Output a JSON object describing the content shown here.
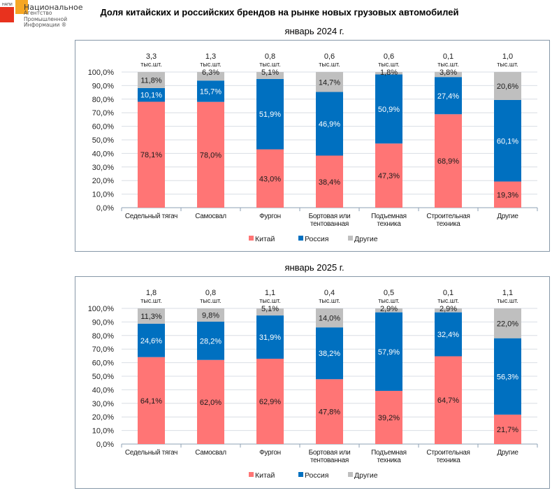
{
  "logo": {
    "abbr": "НАПИ",
    "line1": "Национальное",
    "line2": "Агентство",
    "line3": "Промышленной",
    "line4": "Информации ®"
  },
  "title": "Доля китайских и российских брендов на рынке новых грузовых автомобилей",
  "colors": {
    "china": "#ff7575",
    "russia": "#0070c0",
    "other": "#bfbfbf"
  },
  "chart_data": [
    {
      "type": "bar",
      "stacked": true,
      "title": "январь 2024 г.",
      "categories": [
        "Седельный тягач",
        "Самосвал",
        "Фургон",
        "Бортовая или тентованная",
        "Подъемная техника",
        "Строительная техника",
        "Другие"
      ],
      "category_lines": [
        [
          "Седельный тягач"
        ],
        [
          "Самосвал"
        ],
        [
          "Фургон"
        ],
        [
          "Бортовая или",
          "тентованная"
        ],
        [
          "Подъемная",
          "техника"
        ],
        [
          "Строительная",
          "техника"
        ],
        [
          "Другие"
        ]
      ],
      "totals": [
        "3,3",
        "1,3",
        "0,8",
        "0,6",
        "0,6",
        "0,1",
        "1,0"
      ],
      "totals_unit": "тыс.шт.",
      "series": [
        {
          "name": "Китай",
          "key": "china",
          "values": [
            78.1,
            78.0,
            43.0,
            38.4,
            47.3,
            68.9,
            19.3
          ],
          "labels": [
            "78,1%",
            "78,0%",
            "43,0%",
            "38,4%",
            "47,3%",
            "68,9%",
            "19,3%"
          ]
        },
        {
          "name": "Россия",
          "key": "russia",
          "values": [
            10.1,
            15.7,
            51.9,
            46.9,
            50.9,
            27.4,
            60.1
          ],
          "labels": [
            "10,1%",
            "15,7%",
            "51,9%",
            "46,9%",
            "50,9%",
            "27,4%",
            "60,1%"
          ]
        },
        {
          "name": "Другие",
          "key": "other",
          "values": [
            11.8,
            6.3,
            5.1,
            14.7,
            1.8,
            3.8,
            20.6
          ],
          "labels": [
            "11,8%",
            "6,3%",
            "5,1%",
            "14,7%",
            "1,8%",
            "3,8%",
            "20,6%"
          ]
        }
      ],
      "yticks": [
        "0,0%",
        "10,0%",
        "20,0%",
        "30,0%",
        "40,0%",
        "50,0%",
        "60,0%",
        "70,0%",
        "80,0%",
        "90,0%",
        "100,0%"
      ],
      "ylim": [
        0,
        100
      ],
      "grid": true,
      "legend": "bottom"
    },
    {
      "type": "bar",
      "stacked": true,
      "title": "январь 2025 г.",
      "categories": [
        "Седельный тягач",
        "Самосвал",
        "Фургон",
        "Бортовая или тентованная",
        "Подъемная техника",
        "Строительная техника",
        "Другие"
      ],
      "category_lines": [
        [
          "Седельный тягач"
        ],
        [
          "Самосвал"
        ],
        [
          "Фургон"
        ],
        [
          "Бортовая или",
          "тентованная"
        ],
        [
          "Подъемная",
          "техника"
        ],
        [
          "Строительная",
          "техника"
        ],
        [
          "Другие"
        ]
      ],
      "totals": [
        "1,8",
        "0,8",
        "1,1",
        "0,4",
        "0,5",
        "0,1",
        "1,1"
      ],
      "totals_unit": "тыс.шт.",
      "series": [
        {
          "name": "Китай",
          "key": "china",
          "values": [
            64.1,
            62.0,
            62.9,
            47.8,
            39.2,
            64.7,
            21.7
          ],
          "labels": [
            "64,1%",
            "62,0%",
            "62,9%",
            "47,8%",
            "39,2%",
            "64,7%",
            "21,7%"
          ]
        },
        {
          "name": "Россия",
          "key": "russia",
          "values": [
            24.6,
            28.2,
            31.9,
            38.2,
            57.9,
            32.4,
            56.3
          ],
          "labels": [
            "24,6%",
            "28,2%",
            "31,9%",
            "38,2%",
            "57,9%",
            "32,4%",
            "56,3%"
          ]
        },
        {
          "name": "Другие",
          "key": "other",
          "values": [
            11.3,
            9.8,
            5.1,
            14.0,
            2.9,
            2.9,
            22.0
          ],
          "labels": [
            "11,3%",
            "9,8%",
            "5,1%",
            "14,0%",
            "2,9%",
            "2,9%",
            "22,0%"
          ]
        }
      ],
      "yticks": [
        "0,0%",
        "10,0%",
        "20,0%",
        "30,0%",
        "40,0%",
        "50,0%",
        "60,0%",
        "70,0%",
        "80,0%",
        "90,0%",
        "100,0%"
      ],
      "ylim": [
        0,
        100
      ],
      "grid": true,
      "legend": "bottom"
    }
  ]
}
